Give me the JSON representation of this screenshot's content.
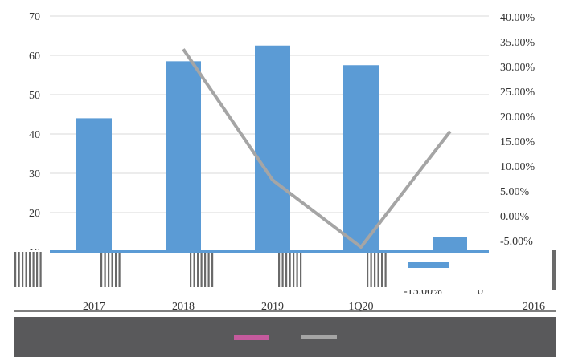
{
  "chart_data": {
    "type": "bar",
    "categories": [
      "2017",
      "2018",
      "2019",
      "1Q20"
    ],
    "series": [
      {
        "type": "bar",
        "axis": "left",
        "values": [
          44,
          58.5,
          62.5,
          57.5
        ]
      },
      {
        "type": "line",
        "axis": "right",
        "values": [
          null,
          33.5,
          7.2,
          -6.3
        ]
      }
    ],
    "extra_category": "2016",
    "left_axis": {
      "ticks": [
        "10",
        "20",
        "30",
        "40",
        "50",
        "60",
        "70"
      ],
      "ylim": [
        10,
        70
      ]
    },
    "right_axis": {
      "ticks": [
        "-5.00%",
        "0.00%",
        "5.00%",
        "10.00%",
        "15.00%",
        "20.00%",
        "25.00%",
        "30.00%",
        "35.00%",
        "40.00%"
      ],
      "ylim": [
        -5,
        40
      ],
      "extra_tick": "-15.00%",
      "extra_zero": "0"
    },
    "grid": true,
    "legend_position": "bottom"
  },
  "colors": {
    "bar": "#5b9bd5",
    "line": "#a5a5a5",
    "grid": "#d9d9d9",
    "legend_bg": "#59595b",
    "legend_bar_swatch": "#c55a9d",
    "legend_line_swatch": "#a5a5a5"
  }
}
